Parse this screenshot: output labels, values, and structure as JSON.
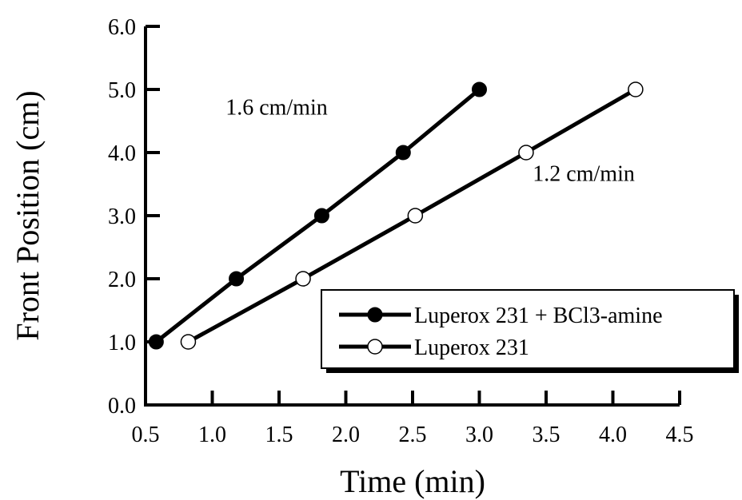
{
  "chart_data": {
    "type": "line",
    "title": "",
    "xlabel": "Time (min)",
    "ylabel": "Front Position (cm)",
    "xlim": [
      0.5,
      4.5
    ],
    "ylim": [
      0.0,
      6.0
    ],
    "x_ticks": [
      "0.5",
      "1.0",
      "1.5",
      "2.0",
      "2.5",
      "3.0",
      "3.5",
      "4.0",
      "4.5"
    ],
    "y_ticks": [
      "0.0",
      "1.0",
      "2.0",
      "3.0",
      "4.0",
      "5.0",
      "6.0"
    ],
    "grid": false,
    "legend_position": "bottom-right",
    "series": [
      {
        "name": "Luperox 231 + BCl3-amine",
        "marker": "filled-circle",
        "color": "#000000",
        "x": [
          0.58,
          1.18,
          1.82,
          2.43,
          3.0
        ],
        "y": [
          1.0,
          2.0,
          3.0,
          4.0,
          5.0
        ]
      },
      {
        "name": "Luperox 231",
        "marker": "open-circle",
        "color": "#000000",
        "x": [
          0.82,
          1.68,
          2.52,
          3.35,
          4.17
        ],
        "y": [
          1.0,
          2.0,
          3.0,
          4.0,
          5.0
        ]
      }
    ],
    "annotations": [
      {
        "text": "1.6 cm/min",
        "x": 1.1,
        "y": 4.6
      },
      {
        "text": "1.2 cm/min",
        "x": 3.4,
        "y": 3.55
      }
    ]
  }
}
